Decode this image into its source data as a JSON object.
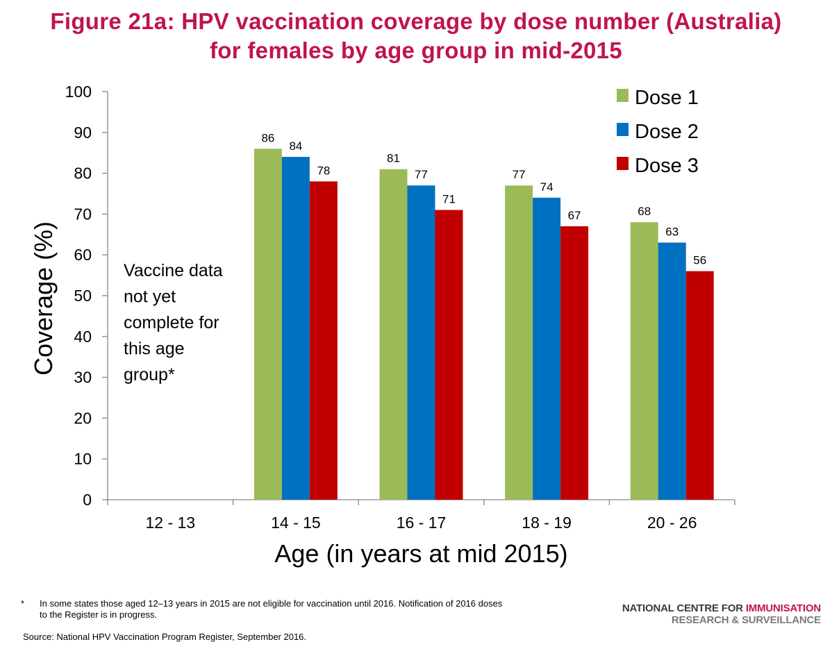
{
  "title": {
    "line1": "Figure 21a: HPV vaccination coverage by dose number (Australia)",
    "line2": "for females by age group in mid-2015"
  },
  "chart_data": {
    "type": "bar",
    "categories": [
      "12 - 13",
      "14 - 15",
      "16 - 17",
      "18 - 19",
      "20 - 26"
    ],
    "series": [
      {
        "name": "Dose 1",
        "color": "#9bbb59",
        "values": [
          null,
          86,
          81,
          77,
          68
        ]
      },
      {
        "name": "Dose 2",
        "color": "#0070c0",
        "values": [
          null,
          84,
          77,
          74,
          63
        ]
      },
      {
        "name": "Dose 3",
        "color": "#c00000",
        "values": [
          null,
          78,
          71,
          67,
          56
        ]
      }
    ],
    "xlabel": "Age (in years at mid 2015)",
    "ylabel": "Coverage  (%)",
    "ylim": [
      0,
      100
    ],
    "yticks": [
      0,
      10,
      20,
      30,
      40,
      50,
      60,
      70,
      80,
      90,
      100
    ],
    "grid": false,
    "legend_position": "top-right",
    "annotation": [
      "Vaccine data",
      "not yet",
      "complete for",
      "this age",
      "group*"
    ]
  },
  "footnote": {
    "marker": "*",
    "line1": "In some states those aged 12–13 years in 2015 are not eligible for vaccination until 2016. Notification of 2016 doses",
    "line2": "to the Register is in progress."
  },
  "source": "Source: National HPV Vaccination Program Register, September 2016.",
  "logo": {
    "line1a": "NATIONAL CENTRE FOR ",
    "line1b": "IMMUNISATION",
    "line2": "RESEARCH & SURVEILLANCE"
  }
}
